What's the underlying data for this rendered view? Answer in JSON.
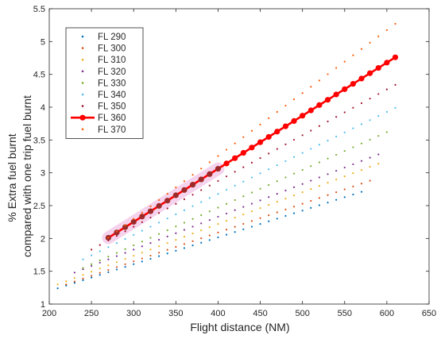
{
  "chart_data": {
    "type": "scatter",
    "xlabel": "Flight distance (NM)",
    "ylabel_lines": [
      "% Extra fuel burnt",
      "compared with one trip fuel burnt"
    ],
    "xlim": [
      200,
      650
    ],
    "ylim": [
      1,
      5.5
    ],
    "xticks": [
      "200",
      "250",
      "300",
      "350",
      "400",
      "450",
      "500",
      "550",
      "600",
      "650"
    ],
    "yticks": [
      "1",
      "1.5",
      "2",
      "2.5",
      "3",
      "3.5",
      "4",
      "4.5",
      "5",
      "5.5"
    ],
    "grid": false,
    "legend_position": "top-left",
    "highlight": {
      "series": "FL 360",
      "x_range": [
        270,
        400
      ],
      "color": "#e060c0"
    },
    "series": [
      {
        "name": "FL 290",
        "color": "#0072bd",
        "style": "dots",
        "x_start": 210,
        "x_end": 570,
        "y_start": 1.24,
        "y_end": 2.71
      },
      {
        "name": "FL 300",
        "color": "#d95319",
        "style": "dots",
        "x_start": 220,
        "x_end": 580,
        "y_start": 1.3,
        "y_end": 2.88
      },
      {
        "name": "FL 310",
        "color": "#edb120",
        "style": "dots",
        "x_start": 210,
        "x_end": 590,
        "y_start": 1.3,
        "y_end": 3.14
      },
      {
        "name": "FL 320",
        "color": "#7e2f8e",
        "style": "dots",
        "x_start": 230,
        "x_end": 590,
        "y_start": 1.48,
        "y_end": 3.28
      },
      {
        "name": "FL 330",
        "color": "#77ac30",
        "style": "dots",
        "x_start": 240,
        "x_end": 600,
        "y_start": 1.55,
        "y_end": 3.62
      },
      {
        "name": "FL 340",
        "color": "#4dbeee",
        "style": "dots",
        "x_start": 240,
        "x_end": 610,
        "y_start": 1.68,
        "y_end": 3.99
      },
      {
        "name": "FL 350",
        "color": "#a2142f",
        "style": "dots",
        "x_start": 250,
        "x_end": 610,
        "y_start": 1.83,
        "y_end": 4.34
      },
      {
        "name": "FL 360",
        "color": "#ff0000",
        "style": "line-marker",
        "x_start": 270,
        "x_end": 610,
        "y_start": 2.01,
        "y_end": 4.76
      },
      {
        "name": "FL 370",
        "color": "#ff5a00",
        "style": "dots",
        "x_start": 270,
        "x_end": 610,
        "y_start": 2.01,
        "y_end": 5.27
      }
    ]
  }
}
